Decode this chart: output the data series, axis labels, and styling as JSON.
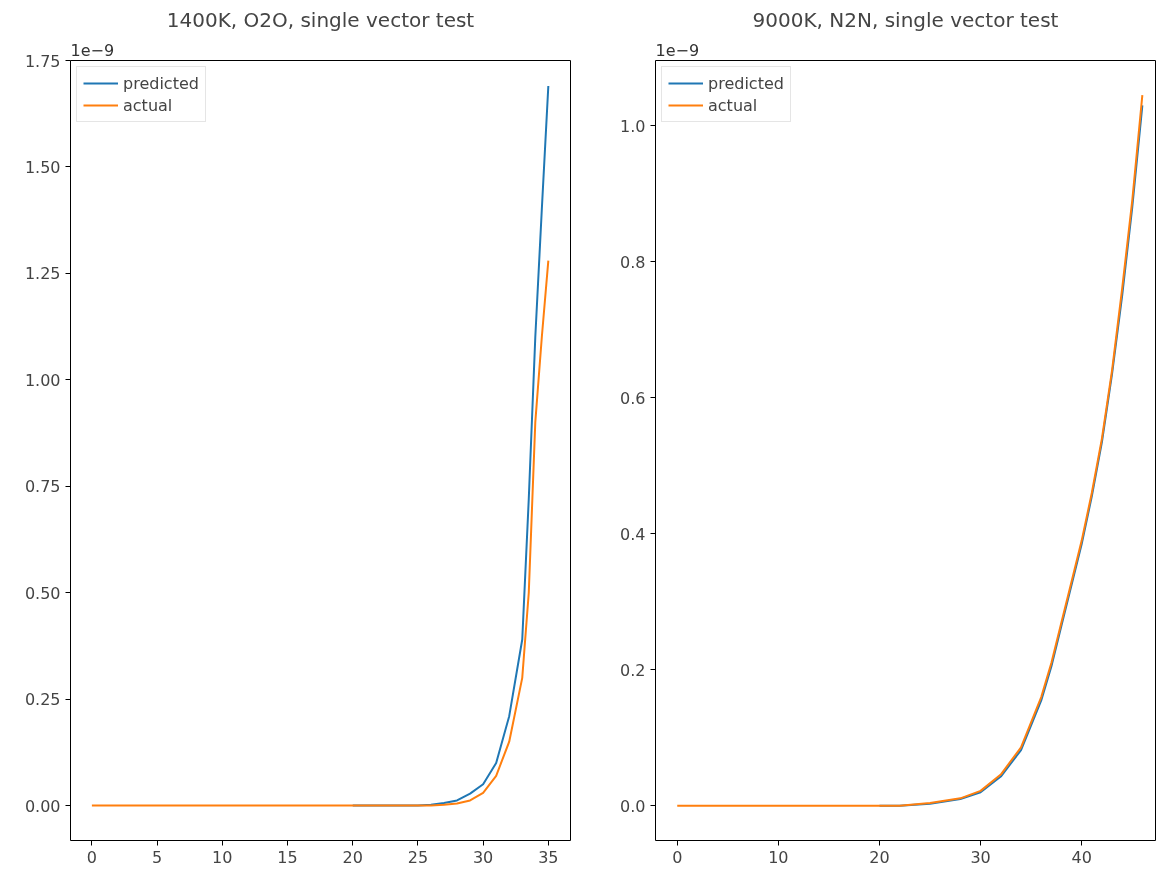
{
  "chart_data": [
    {
      "type": "line",
      "title": "1400K, O2O, single vector test",
      "annotations": [
        "1e−9"
      ],
      "legend": "top left",
      "grid": false,
      "xlim": [
        -1.64,
        36.7
      ],
      "xticks": [
        0,
        5,
        10,
        15,
        20,
        25,
        30,
        35
      ],
      "ylim": [
        -0.082,
        1.75
      ],
      "yticks": [
        {
          "value": 0,
          "label": "0.00"
        },
        0.25,
        {
          "value": 0.5,
          "label": "0.50"
        },
        0.75,
        {
          "value": 1,
          "label": "1.00"
        },
        1.25,
        {
          "value": 1.5,
          "label": "1.50"
        },
        1.75
      ],
      "series": [
        {
          "name": "predicted",
          "color": "#1f77b4",
          "x": [
            20,
            25,
            26,
            27,
            28,
            29,
            30,
            31,
            32,
            33,
            33.5,
            34,
            34.5,
            35
          ],
          "values": [
            0,
            0,
            0.002,
            0.006,
            0.012,
            0.028,
            0.05,
            0.1,
            0.21,
            0.39,
            0.72,
            1.1,
            1.4,
            1.69
          ]
        },
        {
          "name": "actual",
          "color": "#ff7f0e",
          "x": [
            0,
            5,
            10,
            15,
            20,
            25,
            26,
            27,
            28,
            29,
            30,
            31,
            32,
            33,
            33.5,
            34,
            34.5,
            35
          ],
          "values": [
            0,
            0,
            0,
            0,
            0,
            0,
            0,
            0.002,
            0.005,
            0.012,
            0.03,
            0.07,
            0.15,
            0.3,
            0.5,
            0.9,
            1.1,
            1.28
          ]
        }
      ]
    },
    {
      "type": "line",
      "title": "9000K, N2N, single vector test",
      "annotations": [
        "1e−9"
      ],
      "legend": "top left",
      "grid": false,
      "xlim": [
        -2.15,
        47.3
      ],
      "xticks": [
        0,
        10,
        20,
        30,
        40
      ],
      "ylim": [
        -0.051,
        1.096
      ],
      "yticks": [
        {
          "value": 0,
          "label": "0.0"
        },
        0.2,
        0.4,
        0.6,
        0.8,
        {
          "value": 1,
          "label": "1.0"
        }
      ],
      "series": [
        {
          "name": "predicted",
          "color": "#1f77b4",
          "x": [
            20,
            22,
            25,
            28,
            30,
            32,
            34,
            36,
            37,
            38,
            39,
            40,
            41,
            42,
            43,
            44,
            45,
            46
          ],
          "values": [
            0,
            0,
            0.003,
            0.01,
            0.02,
            0.043,
            0.082,
            0.155,
            0.205,
            0.265,
            0.325,
            0.385,
            0.455,
            0.535,
            0.635,
            0.75,
            0.88,
            1.03
          ]
        },
        {
          "name": "actual",
          "color": "#ff7f0e",
          "x": [
            0,
            10,
            20,
            22,
            25,
            28,
            30,
            32,
            34,
            36,
            37,
            38,
            39,
            40,
            41,
            42,
            43,
            44,
            45,
            46
          ],
          "values": [
            0,
            0,
            0,
            0,
            0.004,
            0.011,
            0.022,
            0.046,
            0.086,
            0.16,
            0.21,
            0.27,
            0.33,
            0.39,
            0.46,
            0.54,
            0.64,
            0.76,
            0.89,
            1.045
          ]
        }
      ]
    }
  ]
}
